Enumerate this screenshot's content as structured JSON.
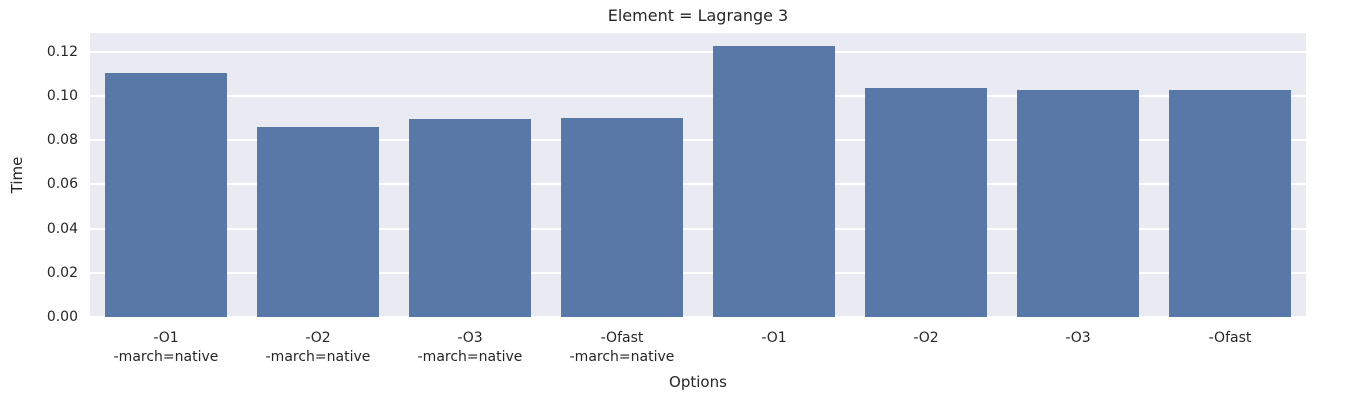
{
  "chart_data": {
    "type": "bar",
    "title": "Element = Lagrange 3",
    "xlabel": "Options",
    "ylabel": "Time",
    "categories": [
      "-O1\n-march=native",
      "-O2\n-march=native",
      "-O3\n-march=native",
      "-Ofast\n-march=native",
      "-O1",
      "-O2",
      "-O3",
      "-Ofast"
    ],
    "values": [
      0.1103,
      0.0857,
      0.0896,
      0.0902,
      0.1224,
      0.1036,
      0.1028,
      0.1028
    ],
    "yticks": [
      0.0,
      0.02,
      0.04,
      0.06,
      0.08,
      0.1,
      0.12
    ],
    "ytick_labels": [
      "0.00",
      "0.02",
      "0.04",
      "0.06",
      "0.08",
      "0.10",
      "0.12"
    ],
    "ylim": [
      0,
      0.1284
    ],
    "grid": true,
    "legend": null,
    "bar_width_fraction": 0.8,
    "colors": {
      "bar": "#5878A8",
      "plot_background": "#EAEAF2",
      "gridline": "#FFFFFF",
      "text": "#262626",
      "figure_background": "#FFFFFF"
    }
  }
}
